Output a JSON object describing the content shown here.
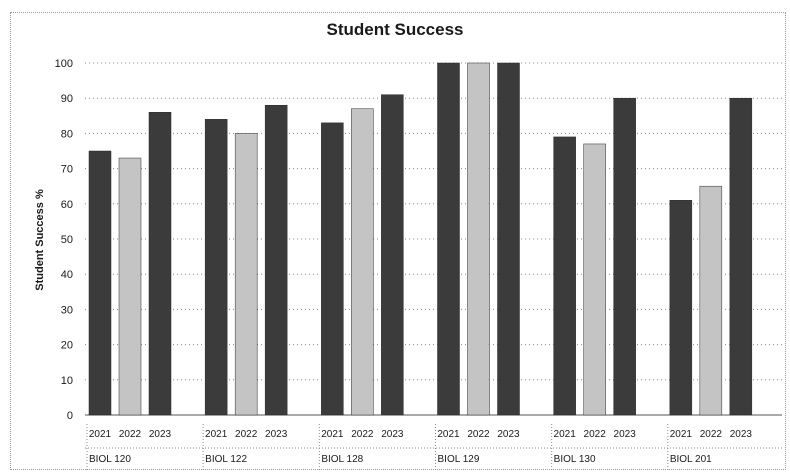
{
  "chart_data": {
    "type": "bar",
    "title": "Student Success",
    "ylabel": "Student Success %",
    "xlabel": "",
    "ylim": [
      0,
      100
    ],
    "yticks": [
      0,
      10,
      20,
      30,
      40,
      50,
      60,
      70,
      80,
      90,
      100
    ],
    "grid": true,
    "legend": "none",
    "categories": [
      "BIOL 120",
      "BIOL 122",
      "BIOL 128",
      "BIOL 129",
      "BIOL 130",
      "BIOL 201"
    ],
    "series": [
      {
        "name": "2021",
        "color": "#3a3a3a",
        "values": [
          75,
          84,
          83,
          100,
          79,
          61
        ]
      },
      {
        "name": "2022",
        "color": "#bdbdbd",
        "values": [
          73,
          80,
          87,
          100,
          77,
          65
        ]
      },
      {
        "name": "2023",
        "color": "#3a3a3a",
        "values": [
          86,
          88,
          91,
          100,
          90,
          90
        ]
      }
    ]
  }
}
